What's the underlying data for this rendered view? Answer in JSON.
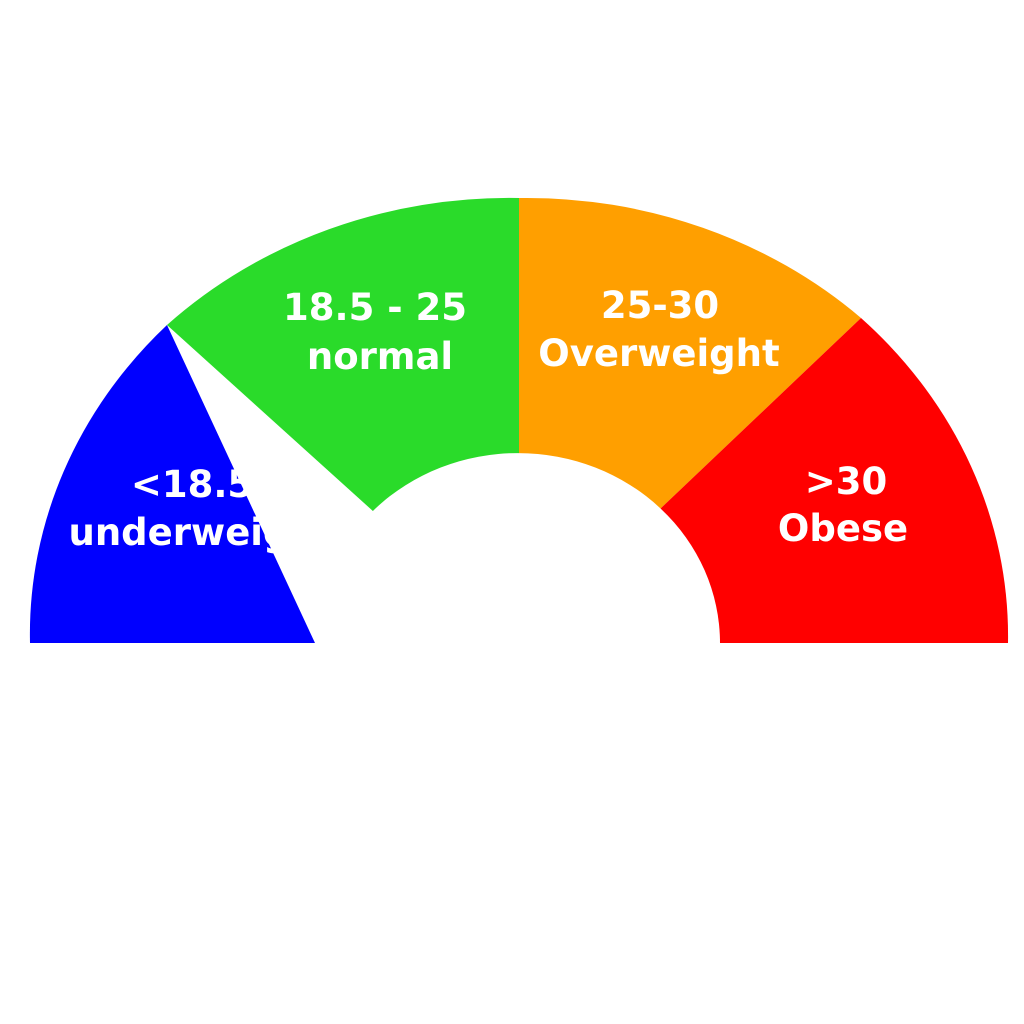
{
  "gauge": {
    "segments": [
      {
        "range": "<18.5",
        "label": "underweight",
        "color": "#0000ff"
      },
      {
        "range": "18.5 - 25",
        "label": "normal",
        "color": "#2adb2a"
      },
      {
        "range": "25-30",
        "label": "Overweight",
        "color": "#ff9f00"
      },
      {
        "range": ">30",
        "label": "Obese",
        "color": "#ff0000"
      }
    ]
  }
}
